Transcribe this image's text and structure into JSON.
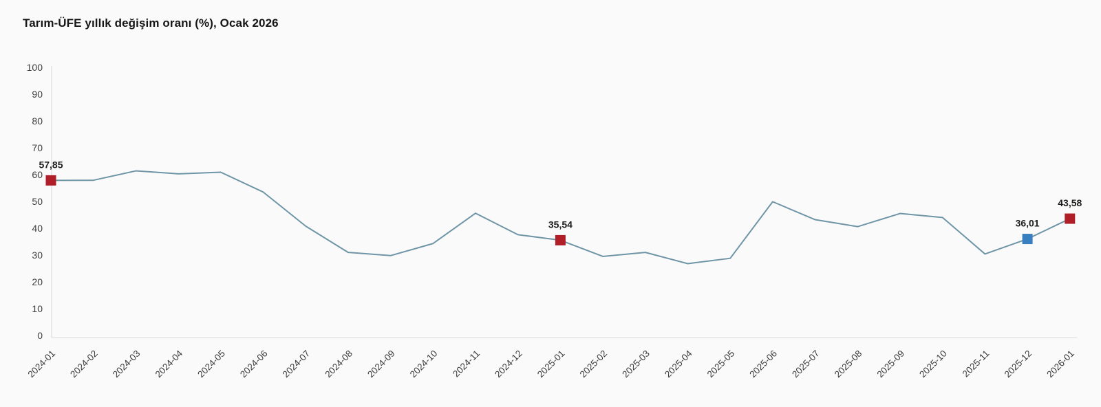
{
  "title": "Tarım-ÜFE yıllık değişim oranı (%), Ocak 2026",
  "chart_data": {
    "type": "line",
    "title": "Tarım-ÜFE yıllık değişim oranı (%), Ocak 2026",
    "x": [
      "2024-01",
      "2024-02",
      "2024-03",
      "2024-04",
      "2024-05",
      "2024-06",
      "2024-07",
      "2024-08",
      "2024-09",
      "2024-10",
      "2024-11",
      "2024-12",
      "2025-01",
      "2025-02",
      "2025-03",
      "2025-04",
      "2025-05",
      "2025-06",
      "2025-07",
      "2025-08",
      "2025-09",
      "2025-10",
      "2025-11",
      "2025-12",
      "2026-01"
    ],
    "series": [
      {
        "name": "Tarım-ÜFE yıllık değişim oranı (%)",
        "values": [
          57.85,
          57.9,
          61.4,
          60.3,
          60.9,
          53.5,
          40.8,
          31.0,
          29.8,
          34.3,
          45.6,
          37.6,
          35.54,
          29.5,
          31.0,
          26.8,
          28.8,
          49.9,
          43.2,
          40.6,
          45.5,
          44.0,
          30.4,
          36.01,
          43.58
        ]
      }
    ],
    "ylim": [
      0,
      100
    ],
    "ytick_labels": [
      "0",
      "10",
      "20",
      "30",
      "40",
      "50",
      "60",
      "70",
      "80",
      "90",
      "100"
    ],
    "grid": false,
    "legend": "none",
    "line_color": "#6e95a6",
    "axis_color": "#e2dfe4",
    "highlight_points": [
      {
        "index": 0,
        "x": "2024-01",
        "value": 57.85,
        "label": "57,85",
        "color": "#b01f28"
      },
      {
        "index": 12,
        "x": "2025-01",
        "value": 35.54,
        "label": "35,54",
        "color": "#b01f28"
      },
      {
        "index": 23,
        "x": "2025-12",
        "value": 36.01,
        "label": "36,01",
        "color": "#377fc0"
      },
      {
        "index": 24,
        "x": "2026-01",
        "value": 43.58,
        "label": "43,58",
        "color": "#b01f28"
      }
    ]
  }
}
